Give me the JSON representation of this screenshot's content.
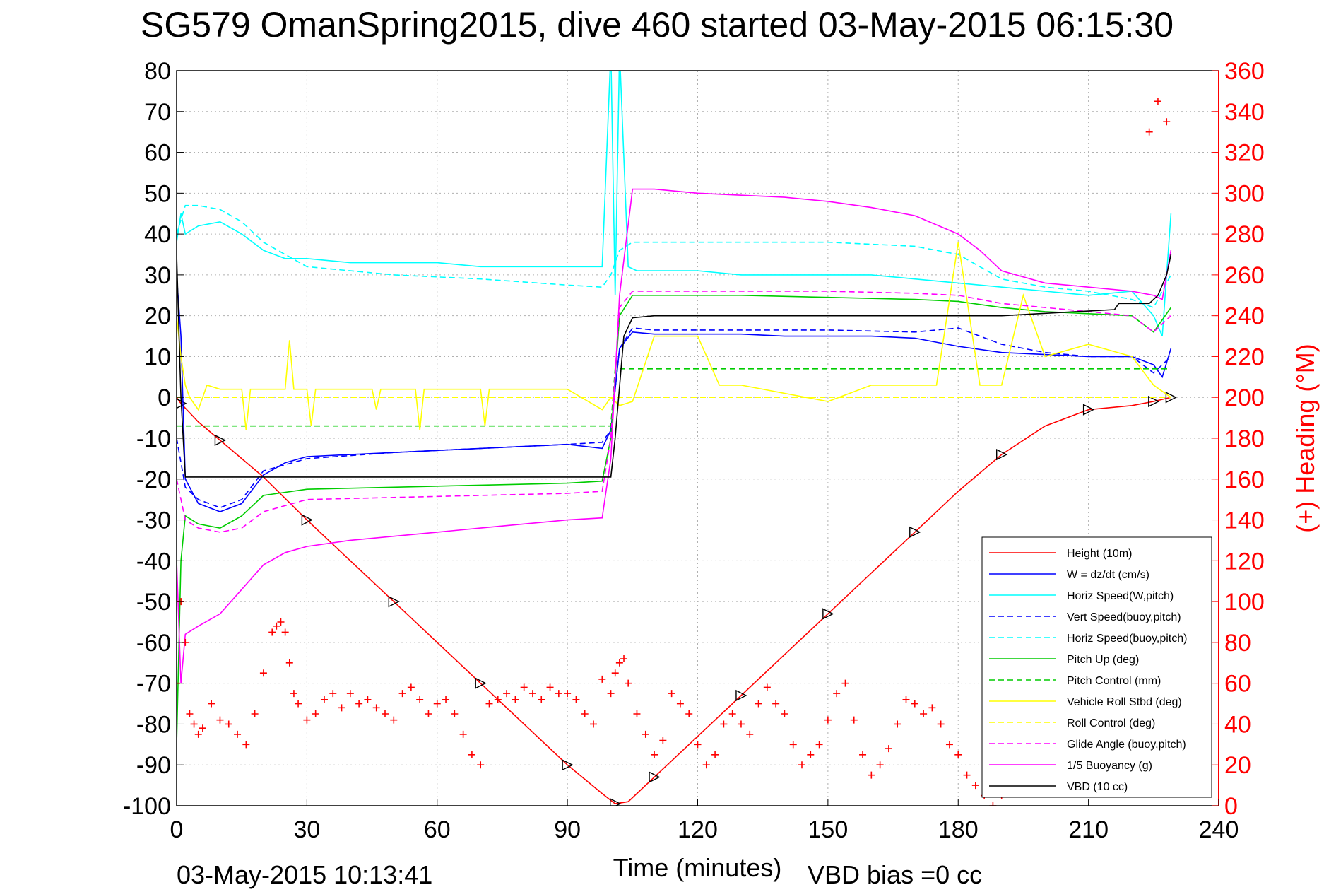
{
  "chart_data": {
    "type": "line",
    "title": "SG579 OmanSpring2015, dive 460 started 03-May-2015 06:15:30",
    "xlabel": "Time (minutes)",
    "ylabel_right": "(+) Heading (°M)",
    "xlim": [
      0,
      240
    ],
    "ylim": [
      -100,
      80
    ],
    "ylim_right": [
      0,
      360
    ],
    "x_ticks": [
      "0",
      "30",
      "60",
      "90",
      "120",
      "150",
      "180",
      "210",
      "240"
    ],
    "y_ticks": [
      "80",
      "70",
      "60",
      "50",
      "40",
      "30",
      "20",
      "10",
      "0",
      "-10",
      "-20",
      "-30",
      "-40",
      "-50",
      "-60",
      "-70",
      "-80",
      "-90",
      "-100"
    ],
    "y_ticks_right": [
      "360",
      "340",
      "320",
      "300",
      "280",
      "260",
      "240",
      "220",
      "200",
      "180",
      "160",
      "140",
      "120",
      "100",
      "80",
      "60",
      "40",
      "20",
      "0"
    ],
    "grid": true,
    "legend_position": "bottom-right",
    "footer_time": "03-May-2015 10:13:41",
    "footer_bias": "VBD bias =0 cc",
    "series": [
      {
        "name": "Height (10m)",
        "color": "#ff0000",
        "style": "solid",
        "x": [
          0,
          1,
          5,
          10,
          20,
          30,
          40,
          50,
          60,
          70,
          80,
          90,
          98,
          101,
          104,
          110,
          120,
          130,
          140,
          150,
          160,
          170,
          180,
          190,
          200,
          210,
          220,
          225,
          227,
          229
        ],
        "y": [
          0,
          -1.5,
          -6,
          -10.5,
          -19.5,
          -30,
          -40,
          -50,
          -60,
          -70,
          -80,
          -90,
          -97,
          -99.5,
          -99,
          -93,
          -83,
          -73,
          -63,
          -53,
          -43,
          -33,
          -23,
          -14,
          -7,
          -3,
          -2,
          -1,
          -0.5,
          0
        ]
      },
      {
        "name": "W = dz/dt (cm/s)",
        "color": "#0000ff",
        "style": "solid",
        "x": [
          0,
          1,
          2,
          5,
          10,
          15,
          20,
          25,
          30,
          40,
          50,
          60,
          70,
          80,
          90,
          98,
          100,
          102,
          105,
          110,
          120,
          130,
          140,
          150,
          160,
          170,
          180,
          190,
          200,
          210,
          220,
          225,
          227,
          229
        ],
        "y": [
          30,
          15,
          -20,
          -26,
          -28,
          -26,
          -19,
          -16,
          -14.5,
          -14,
          -13.5,
          -13,
          -12.5,
          -12,
          -11.5,
          -12.5,
          -8,
          12,
          16,
          15.5,
          15.5,
          15.5,
          15,
          15,
          15,
          14.5,
          12.5,
          11,
          10.5,
          10,
          10,
          8,
          5,
          12
        ]
      },
      {
        "name": "Horiz Speed(W,pitch)",
        "color": "#00ffff",
        "style": "solid",
        "x": [
          0,
          1,
          2,
          5,
          10,
          15,
          20,
          25,
          30,
          40,
          50,
          60,
          70,
          80,
          90,
          98,
          100,
          101,
          102,
          104,
          106,
          110,
          120,
          130,
          140,
          150,
          160,
          170,
          180,
          190,
          200,
          210,
          220,
          225,
          227,
          229
        ],
        "y": [
          38,
          45,
          40,
          42,
          43,
          40,
          36,
          34,
          34,
          33,
          33,
          33,
          32,
          32,
          32,
          32,
          85,
          25,
          85,
          32,
          31,
          31,
          31,
          30,
          30,
          30,
          30,
          29,
          28,
          27,
          26,
          25,
          26,
          20,
          15,
          45
        ]
      },
      {
        "name": "Vert Speed(buoy,pitch)",
        "color": "#0000ff",
        "style": "dashed",
        "x": [
          0,
          2,
          5,
          10,
          15,
          20,
          30,
          50,
          70,
          90,
          98,
          100,
          102,
          105,
          110,
          130,
          150,
          170,
          180,
          190,
          200,
          210,
          220,
          225,
          229
        ],
        "y": [
          -10,
          -22,
          -25,
          -27,
          -25,
          -18,
          -15,
          -13.5,
          -12.5,
          -11.5,
          -11,
          -8,
          12,
          17,
          16.5,
          16.5,
          16.5,
          16,
          17,
          13,
          11,
          10,
          10,
          6,
          10
        ]
      },
      {
        "name": "Horiz Speed(buoy,pitch)",
        "color": "#00ffff",
        "style": "dashed",
        "x": [
          0,
          2,
          5,
          10,
          15,
          20,
          30,
          50,
          70,
          90,
          98,
          100,
          102,
          105,
          110,
          130,
          150,
          170,
          180,
          190,
          200,
          210,
          220,
          225,
          229
        ],
        "y": [
          40,
          47,
          47,
          46,
          43,
          38,
          32,
          30,
          29,
          27.5,
          27,
          30,
          36,
          38,
          38,
          38,
          38,
          37,
          35,
          29,
          27,
          26,
          24,
          22,
          30
        ]
      },
      {
        "name": "Pitch Up (deg)",
        "color": "#00cc00",
        "style": "solid",
        "x": [
          0,
          1,
          2,
          5,
          10,
          15,
          20,
          30,
          50,
          70,
          90,
          98,
          100,
          102,
          105,
          110,
          130,
          150,
          170,
          180,
          190,
          200,
          210,
          220,
          225,
          229
        ],
        "y": [
          -85,
          -40,
          -29,
          -31,
          -32,
          -29,
          -24,
          -22.5,
          -22,
          -21.5,
          -21,
          -20.5,
          -10,
          20,
          25,
          25,
          25,
          24.5,
          24,
          23.5,
          22,
          21,
          20.5,
          20,
          16,
          22
        ]
      },
      {
        "name": "Pitch Control (mm)",
        "color": "#00cc00",
        "style": "dashed",
        "x": [
          0,
          1,
          2,
          100,
          101,
          102,
          229
        ],
        "y": [
          -7,
          -7,
          -7,
          -7,
          7,
          7,
          7
        ]
      },
      {
        "name": "Vehicle Roll Stbd (deg)",
        "color": "#ffff00",
        "style": "solid",
        "x": [
          0,
          1,
          2,
          3,
          5,
          7,
          10,
          15,
          16,
          17,
          20,
          25,
          26,
          27,
          30,
          31,
          32,
          33,
          45,
          46,
          47,
          55,
          56,
          57,
          70,
          71,
          72,
          90,
          98,
          100,
          102,
          105,
          110,
          120,
          125,
          130,
          150,
          160,
          170,
          175,
          180,
          185,
          190,
          195,
          200,
          210,
          220,
          225,
          229
        ],
        "y": [
          20,
          10,
          3,
          0,
          -3,
          3,
          2,
          2,
          -8,
          2,
          2,
          2,
          14,
          2,
          2,
          -7,
          2,
          2,
          2,
          -3,
          2,
          2,
          -8,
          2,
          2,
          -7,
          2,
          2,
          -3,
          0,
          -2,
          -1,
          15,
          15,
          3,
          3,
          -1,
          3,
          3,
          3,
          38,
          3,
          3,
          25,
          10,
          13,
          10,
          3,
          0
        ]
      },
      {
        "name": "Roll Control (deg)",
        "color": "#ffff00",
        "style": "dashed",
        "x": [
          0,
          229
        ],
        "y": [
          0,
          0
        ]
      },
      {
        "name": "Glide Angle (buoy,pitch)",
        "color": "#ff00ff",
        "style": "dashed",
        "x": [
          0,
          2,
          5,
          10,
          15,
          20,
          30,
          50,
          70,
          90,
          98,
          100,
          102,
          105,
          110,
          130,
          150,
          170,
          180,
          190,
          200,
          210,
          220,
          225,
          229
        ],
        "y": [
          -20,
          -30,
          -32,
          -33,
          -32,
          -28,
          -25,
          -24.5,
          -24,
          -23.5,
          -23,
          -10,
          22,
          26,
          26,
          26,
          26,
          25.5,
          25,
          23,
          22,
          21,
          20,
          16,
          20
        ]
      },
      {
        "name": "1/5 Buoyancy (g)",
        "color": "#ff00ff",
        "style": "solid",
        "x": [
          0,
          1,
          2,
          5,
          10,
          15,
          20,
          25,
          30,
          40,
          50,
          60,
          70,
          80,
          90,
          98,
          100,
          102,
          105,
          110,
          120,
          130,
          140,
          150,
          160,
          170,
          180,
          185,
          190,
          200,
          210,
          220,
          225,
          227,
          229
        ],
        "y": [
          -40,
          -70,
          -58,
          -56,
          -53,
          -47,
          -41,
          -38,
          -36.5,
          -35,
          -34,
          -33,
          -32,
          -31,
          -30,
          -29.5,
          -15,
          25,
          51,
          51,
          50,
          49.5,
          49,
          48,
          46.5,
          44.5,
          40,
          36,
          31,
          28,
          27,
          26,
          25,
          24,
          36
        ]
      },
      {
        "name": "VBD (10 cc)",
        "color": "#000000",
        "style": "solid",
        "x": [
          0,
          1,
          2,
          100,
          101,
          103,
          105,
          110,
          150,
          190,
          216,
          217,
          224,
          226,
          228,
          229
        ],
        "y": [
          35,
          0,
          -19.5,
          -19.5,
          -10,
          15,
          19.5,
          20,
          20,
          20,
          21.5,
          23,
          23,
          25,
          30,
          35
        ]
      },
      {
        "name": "(+) Heading",
        "color": "#ff0000",
        "style": "marker-plus",
        "axis": "right",
        "x": [
          0,
          1,
          2,
          3,
          4,
          5,
          6,
          8,
          10,
          12,
          14,
          16,
          18,
          20,
          22,
          23,
          24,
          25,
          26,
          27,
          28,
          30,
          32,
          34,
          36,
          38,
          40,
          42,
          44,
          46,
          48,
          50,
          52,
          54,
          56,
          58,
          60,
          62,
          64,
          66,
          68,
          70,
          72,
          74,
          76,
          78,
          80,
          82,
          84,
          86,
          88,
          90,
          92,
          94,
          96,
          98,
          100,
          101,
          102,
          103,
          104,
          106,
          108,
          110,
          112,
          114,
          116,
          118,
          120,
          122,
          124,
          126,
          128,
          130,
          132,
          134,
          136,
          138,
          140,
          142,
          144,
          146,
          148,
          150,
          152,
          154,
          156,
          158,
          160,
          162,
          164,
          166,
          168,
          170,
          172,
          174,
          176,
          178,
          180,
          182,
          184,
          186,
          188,
          190,
          192,
          194,
          196,
          198,
          200,
          202,
          204,
          206,
          208,
          210,
          212,
          214,
          216,
          218,
          220,
          222,
          224,
          226,
          228
        ],
        "y": [
          60,
          100,
          80,
          45,
          40,
          35,
          38,
          50,
          42,
          40,
          35,
          30,
          45,
          65,
          85,
          88,
          90,
          85,
          70,
          55,
          50,
          42,
          45,
          52,
          55,
          48,
          55,
          50,
          52,
          48,
          45,
          42,
          55,
          58,
          52,
          45,
          50,
          52,
          45,
          35,
          25,
          20,
          50,
          52,
          55,
          52,
          58,
          55,
          52,
          58,
          55,
          55,
          52,
          45,
          40,
          62,
          55,
          65,
          70,
          72,
          60,
          45,
          35,
          25,
          32,
          55,
          50,
          45,
          30,
          20,
          25,
          40,
          45,
          40,
          35,
          50,
          58,
          50,
          45,
          30,
          20,
          25,
          30,
          42,
          55,
          60,
          42,
          25,
          15,
          20,
          28,
          40,
          52,
          50,
          45,
          48,
          40,
          30,
          25,
          15,
          10,
          5,
          0,
          5,
          10,
          15,
          20,
          30,
          40,
          45,
          55,
          65,
          75,
          80,
          85,
          75,
          60,
          45,
          30,
          30,
          330,
          345,
          335
        ]
      }
    ]
  },
  "legend": {
    "items": [
      {
        "label": "Height (10m)",
        "color": "#ff0000",
        "style": "solid"
      },
      {
        "label": "W = dz/dt (cm/s)",
        "color": "#0000ff",
        "style": "solid"
      },
      {
        "label": "Horiz Speed(W,pitch)",
        "color": "#00ffff",
        "style": "solid"
      },
      {
        "label": "Vert Speed(buoy,pitch)",
        "color": "#0000ff",
        "style": "dashed"
      },
      {
        "label": "Horiz Speed(buoy,pitch)",
        "color": "#00ffff",
        "style": "dashed"
      },
      {
        "label": "Pitch Up (deg)",
        "color": "#00cc00",
        "style": "solid"
      },
      {
        "label": "Pitch Control (mm)",
        "color": "#00cc00",
        "style": "dashed"
      },
      {
        "label": "Vehicle Roll Stbd (deg)",
        "color": "#ffff00",
        "style": "solid"
      },
      {
        "label": "Roll Control (deg)",
        "color": "#ffff00",
        "style": "dashed"
      },
      {
        "label": "Glide Angle (buoy,pitch)",
        "color": "#ff00ff",
        "style": "dashed"
      },
      {
        "label": "1/5 Buoyancy (g)",
        "color": "#ff00ff",
        "style": "solid"
      },
      {
        "label": "VBD (10 cc)",
        "color": "#000000",
        "style": "solid"
      }
    ]
  }
}
